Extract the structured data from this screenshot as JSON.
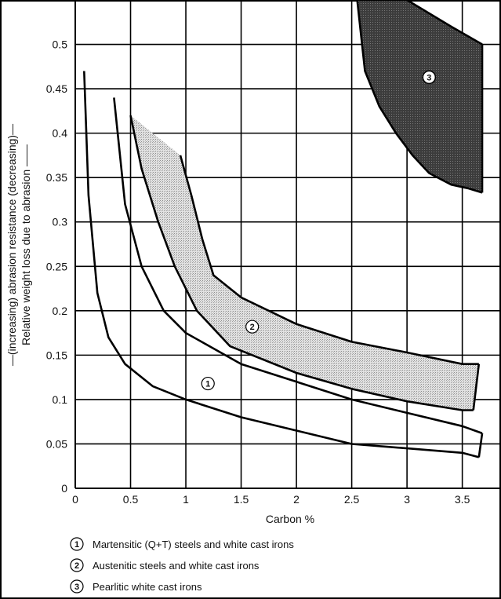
{
  "chart_data": {
    "type": "line",
    "xlabel": "Carbon %",
    "ylabel": "—(increasing) abrasion resistance (decreasing)—",
    "ylabel2": "Relative weight loss due to abrasion ——",
    "xlim": [
      0,
      3.85
    ],
    "ylim": [
      0,
      0.55
    ],
    "xticks": [
      "0",
      "0.5",
      "1",
      "1.5",
      "2",
      "2.5",
      "3",
      "3.5"
    ],
    "xtick_values": [
      0,
      0.5,
      1,
      1.5,
      2,
      2.5,
      3,
      3.5
    ],
    "yticks": [
      "0",
      "0.05",
      "0.1",
      "0.15",
      "0.2",
      "0.25",
      "0.3",
      "0.35",
      "0.4",
      "0.45",
      "0.5"
    ],
    "ytick_values": [
      0,
      0.05,
      0.1,
      0.15,
      0.2,
      0.25,
      0.3,
      0.35,
      0.4,
      0.45,
      0.5
    ],
    "grid": true,
    "regions": [
      {
        "id": "1",
        "label_position": [
          1.2,
          0.118
        ],
        "upper": {
          "x": [
            0.08,
            0.12,
            0.2,
            0.3,
            0.45,
            0.7,
            1.0,
            1.5,
            2.0,
            2.5,
            3.0,
            3.5,
            3.65
          ],
          "y": [
            0.47,
            0.33,
            0.22,
            0.17,
            0.14,
            0.115,
            0.1,
            0.08,
            0.065,
            0.05,
            0.045,
            0.04,
            0.035
          ]
        },
        "lower": {
          "x": [
            0.35,
            0.45,
            0.6,
            0.8,
            1.0,
            1.5,
            2.0,
            2.5,
            3.0,
            3.5,
            3.68
          ],
          "y": [
            0.44,
            0.32,
            0.25,
            0.2,
            0.175,
            0.14,
            0.12,
            0.1,
            0.085,
            0.07,
            0.062
          ]
        }
      },
      {
        "id": "2",
        "label_position": [
          1.6,
          0.182
        ],
        "upper": {
          "x": [
            0.95,
            1.05,
            1.15,
            1.25,
            1.5,
            2.0,
            2.5,
            3.0,
            3.5,
            3.65
          ],
          "y": [
            0.375,
            0.33,
            0.28,
            0.24,
            0.215,
            0.185,
            0.165,
            0.153,
            0.14,
            0.14
          ]
        },
        "lower": {
          "x": [
            0.5,
            0.6,
            0.75,
            0.9,
            1.1,
            1.4,
            2.0,
            2.5,
            3.0,
            3.5,
            3.6
          ],
          "y": [
            0.42,
            0.36,
            0.3,
            0.25,
            0.2,
            0.16,
            0.13,
            0.112,
            0.098,
            0.088,
            0.088
          ]
        }
      },
      {
        "id": "3",
        "label_position": [
          3.2,
          0.463
        ],
        "upper": {
          "x": [
            2.55,
            2.6,
            3.0,
            3.4,
            3.68
          ],
          "y": [
            0.55,
            0.55,
            0.55,
            0.52,
            0.5
          ]
        },
        "lower": {
          "x": [
            2.55,
            2.62,
            2.75,
            2.9,
            3.05,
            3.2,
            3.4,
            3.55,
            3.68
          ],
          "y": [
            0.55,
            0.47,
            0.43,
            0.4,
            0.375,
            0.355,
            0.342,
            0.338,
            0.333
          ]
        }
      }
    ],
    "legend": [
      {
        "id": "1",
        "text": "Martensitic (Q+T) steels and white cast irons"
      },
      {
        "id": "2",
        "text": "Austenitic steels and white cast irons"
      },
      {
        "id": "3",
        "text": "Pearlitic white cast irons"
      }
    ]
  }
}
